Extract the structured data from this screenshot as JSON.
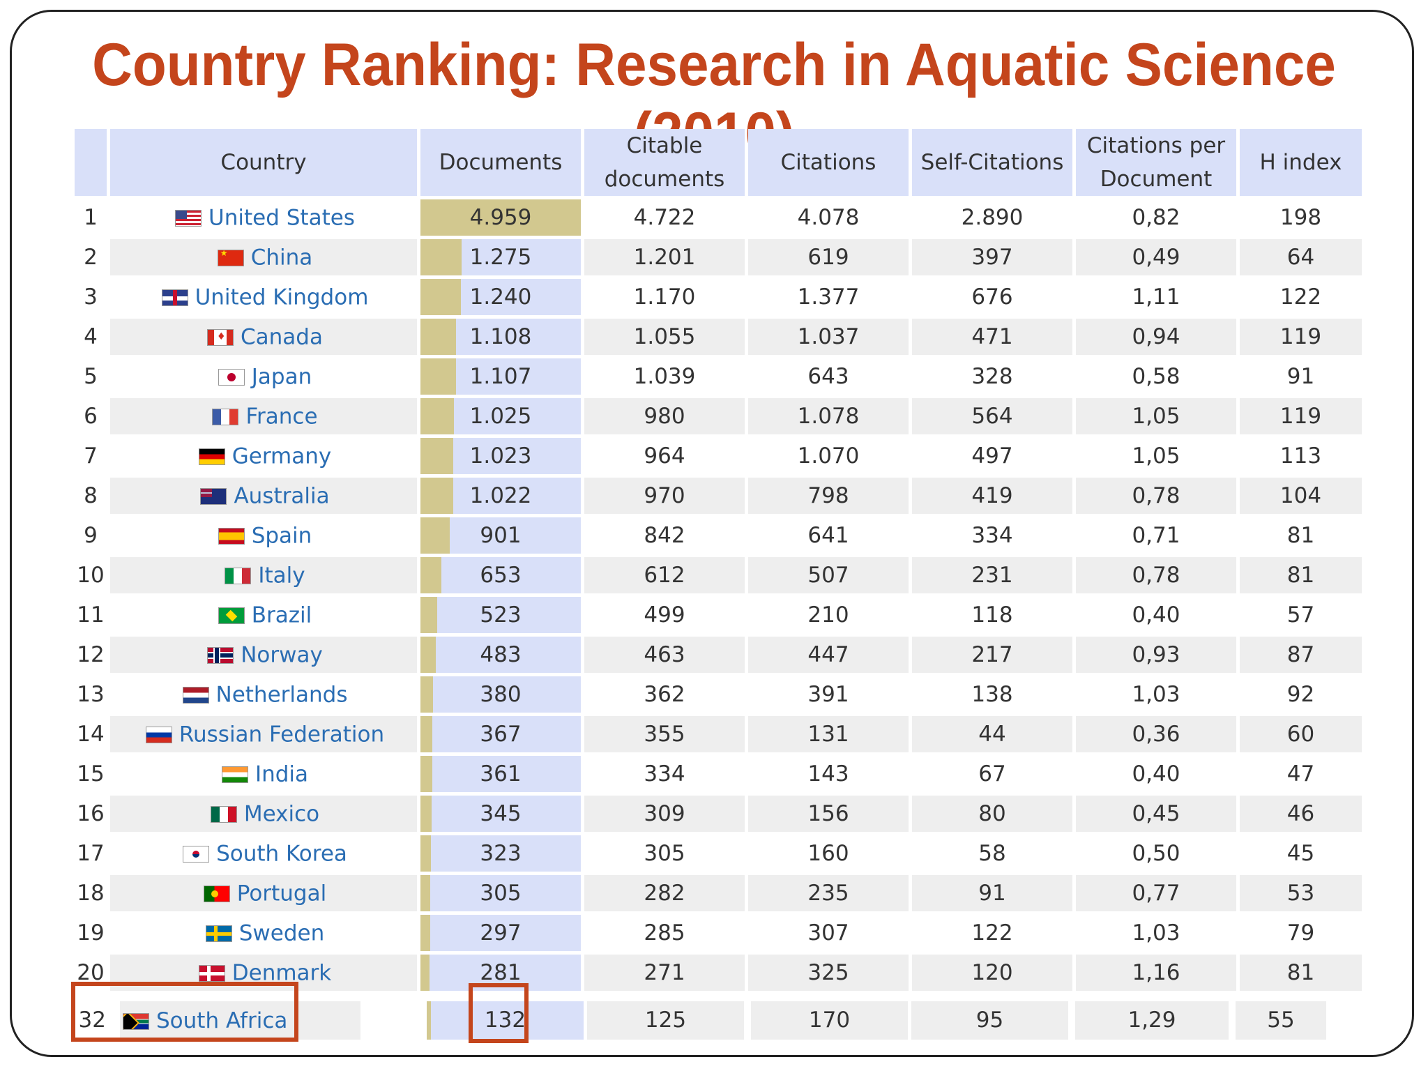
{
  "title": "Country Ranking: Research in Aquatic Science (2010)",
  "columns": [
    "",
    "Country",
    "Documents",
    "Citable documents",
    "Citations",
    "Self-Citations",
    "Citations per Document",
    "H index"
  ],
  "rows": [
    {
      "rank": "1",
      "country": "United States",
      "flag": "us-flag-icon",
      "documents": "4.959",
      "doc_value": 4959,
      "citable": "4.722",
      "citations": "4.078",
      "self_citations": "2.890",
      "cpd": "0,82",
      "h_index": "198"
    },
    {
      "rank": "2",
      "country": "China",
      "flag": "cn-flag-icon",
      "documents": "1.275",
      "doc_value": 1275,
      "citable": "1.201",
      "citations": "619",
      "self_citations": "397",
      "cpd": "0,49",
      "h_index": "64"
    },
    {
      "rank": "3",
      "country": "United Kingdom",
      "flag": "gb-flag-icon",
      "documents": "1.240",
      "doc_value": 1240,
      "citable": "1.170",
      "citations": "1.377",
      "self_citations": "676",
      "cpd": "1,11",
      "h_index": "122"
    },
    {
      "rank": "4",
      "country": "Canada",
      "flag": "ca-flag-icon",
      "documents": "1.108",
      "doc_value": 1108,
      "citable": "1.055",
      "citations": "1.037",
      "self_citations": "471",
      "cpd": "0,94",
      "h_index": "119"
    },
    {
      "rank": "5",
      "country": "Japan",
      "flag": "jp-flag-icon",
      "documents": "1.107",
      "doc_value": 1107,
      "citable": "1.039",
      "citations": "643",
      "self_citations": "328",
      "cpd": "0,58",
      "h_index": "91"
    },
    {
      "rank": "6",
      "country": "France",
      "flag": "fr-flag-icon",
      "documents": "1.025",
      "doc_value": 1025,
      "citable": "980",
      "citations": "1.078",
      "self_citations": "564",
      "cpd": "1,05",
      "h_index": "119"
    },
    {
      "rank": "7",
      "country": "Germany",
      "flag": "de-flag-icon",
      "documents": "1.023",
      "doc_value": 1023,
      "citable": "964",
      "citations": "1.070",
      "self_citations": "497",
      "cpd": "1,05",
      "h_index": "113"
    },
    {
      "rank": "8",
      "country": "Australia",
      "flag": "au-flag-icon",
      "documents": "1.022",
      "doc_value": 1022,
      "citable": "970",
      "citations": "798",
      "self_citations": "419",
      "cpd": "0,78",
      "h_index": "104"
    },
    {
      "rank": "9",
      "country": "Spain",
      "flag": "es-flag-icon",
      "documents": "901",
      "doc_value": 901,
      "citable": "842",
      "citations": "641",
      "self_citations": "334",
      "cpd": "0,71",
      "h_index": "81"
    },
    {
      "rank": "10",
      "country": "Italy",
      "flag": "it-flag-icon",
      "documents": "653",
      "doc_value": 653,
      "citable": "612",
      "citations": "507",
      "self_citations": "231",
      "cpd": "0,78",
      "h_index": "81"
    },
    {
      "rank": "11",
      "country": "Brazil",
      "flag": "br-flag-icon",
      "documents": "523",
      "doc_value": 523,
      "citable": "499",
      "citations": "210",
      "self_citations": "118",
      "cpd": "0,40",
      "h_index": "57"
    },
    {
      "rank": "12",
      "country": "Norway",
      "flag": "no-flag-icon",
      "documents": "483",
      "doc_value": 483,
      "citable": "463",
      "citations": "447",
      "self_citations": "217",
      "cpd": "0,93",
      "h_index": "87"
    },
    {
      "rank": "13",
      "country": "Netherlands",
      "flag": "nl-flag-icon",
      "documents": "380",
      "doc_value": 380,
      "citable": "362",
      "citations": "391",
      "self_citations": "138",
      "cpd": "1,03",
      "h_index": "92"
    },
    {
      "rank": "14",
      "country": "Russian Federation",
      "flag": "ru-flag-icon",
      "documents": "367",
      "doc_value": 367,
      "citable": "355",
      "citations": "131",
      "self_citations": "44",
      "cpd": "0,36",
      "h_index": "60"
    },
    {
      "rank": "15",
      "country": "India",
      "flag": "in-flag-icon",
      "documents": "361",
      "doc_value": 361,
      "citable": "334",
      "citations": "143",
      "self_citations": "67",
      "cpd": "0,40",
      "h_index": "47"
    },
    {
      "rank": "16",
      "country": "Mexico",
      "flag": "mx-flag-icon",
      "documents": "345",
      "doc_value": 345,
      "citable": "309",
      "citations": "156",
      "self_citations": "80",
      "cpd": "0,45",
      "h_index": "46"
    },
    {
      "rank": "17",
      "country": "South Korea",
      "flag": "kr-flag-icon",
      "documents": "323",
      "doc_value": 323,
      "citable": "305",
      "citations": "160",
      "self_citations": "58",
      "cpd": "0,50",
      "h_index": "45"
    },
    {
      "rank": "18",
      "country": "Portugal",
      "flag": "pt-flag-icon",
      "documents": "305",
      "doc_value": 305,
      "citable": "282",
      "citations": "235",
      "self_citations": "91",
      "cpd": "0,77",
      "h_index": "53"
    },
    {
      "rank": "19",
      "country": "Sweden",
      "flag": "se-flag-icon",
      "documents": "297",
      "doc_value": 297,
      "citable": "285",
      "citations": "307",
      "self_citations": "122",
      "cpd": "1,03",
      "h_index": "79"
    },
    {
      "rank": "20",
      "country": "Denmark",
      "flag": "dk-flag-icon",
      "documents": "281",
      "doc_value": 281,
      "citable": "271",
      "citations": "325",
      "self_citations": "120",
      "cpd": "1,16",
      "h_index": "81"
    }
  ],
  "highlight_row": {
    "rank": "32",
    "country": "South Africa",
    "flag": "za-flag-icon",
    "documents": "132",
    "doc_value": 132,
    "citable": "125",
    "citations": "170",
    "self_citations": "95",
    "cpd": "1,29",
    "h_index": "55"
  },
  "colors": {
    "title": "#c4451c",
    "header_bg": "#d9e0f9",
    "bar": "#d2c88f",
    "link": "#2a6db3",
    "highlight_box": "#c4451c"
  }
}
